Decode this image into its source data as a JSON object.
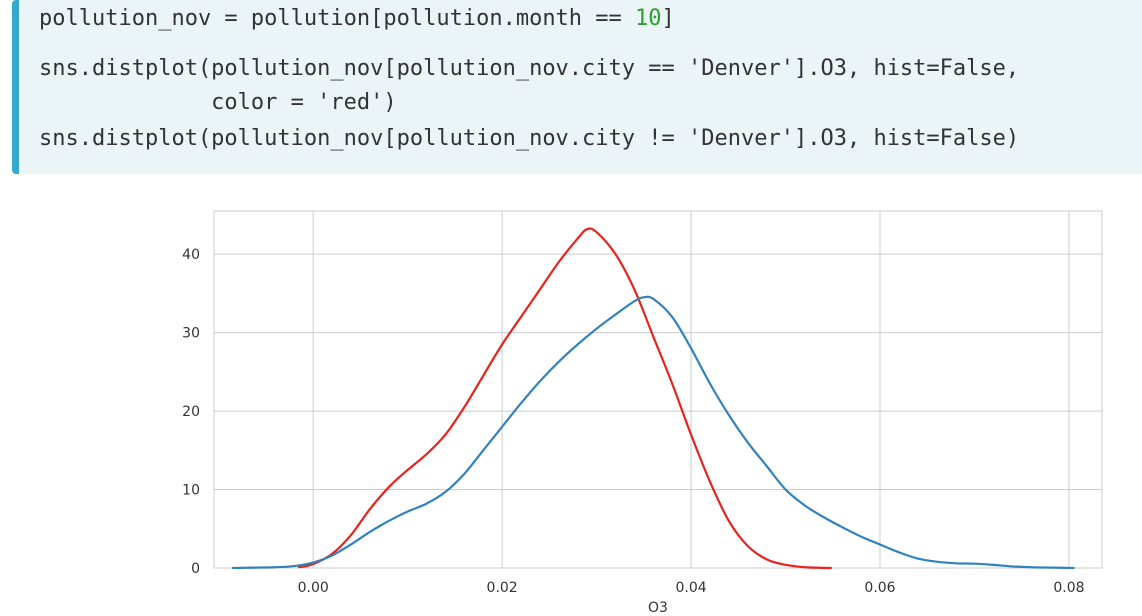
{
  "code": {
    "lines": [
      {
        "parts": [
          {
            "text": "pollution_nov = pollution[pollution.month == ",
            "type": "plain"
          },
          {
            "text": "10",
            "type": "num"
          },
          {
            "text": "]",
            "type": "plain"
          }
        ]
      },
      {
        "parts": [
          {
            "text": "sns.distplot(pollution_nov[pollution_nov.city == 'Denver'].O3, hist=False,",
            "type": "plain"
          }
        ]
      },
      {
        "parts": [
          {
            "text": "             color = 'red')",
            "type": "plain"
          }
        ]
      },
      {
        "parts": [
          {
            "text": "sns.distplot(pollution_nov[pollution_nov.city != 'Denver'].O3, hist=False)",
            "type": "plain"
          }
        ]
      }
    ]
  },
  "chart_data": {
    "type": "line",
    "title": "",
    "xlabel": "O3",
    "ylabel": "",
    "xlim": [
      -0.0105,
      0.0835
    ],
    "ylim": [
      0,
      45.5
    ],
    "xticks": [
      0.0,
      0.02,
      0.04,
      0.06,
      0.08
    ],
    "xtick_labels": [
      "0.00",
      "0.02",
      "0.04",
      "0.06",
      "0.08"
    ],
    "yticks": [
      0,
      10,
      20,
      30,
      40
    ],
    "ytick_labels": [
      "0",
      "10",
      "20",
      "30",
      "40"
    ],
    "grid": true,
    "legend": false,
    "series": [
      {
        "color": "#e8221d",
        "x": [
          -0.0015,
          0.0,
          0.002,
          0.004,
          0.006,
          0.008,
          0.01,
          0.012,
          0.014,
          0.016,
          0.018,
          0.02,
          0.022,
          0.024,
          0.026,
          0.028,
          0.029,
          0.03,
          0.032,
          0.034,
          0.036,
          0.038,
          0.04,
          0.042,
          0.044,
          0.046,
          0.048,
          0.05,
          0.052,
          0.054,
          0.0548
        ],
        "y": [
          0.1,
          0.5,
          1.8,
          4.2,
          7.5,
          10.3,
          12.5,
          14.5,
          17.0,
          20.5,
          24.5,
          28.5,
          32.0,
          35.5,
          39.0,
          42.0,
          43.2,
          42.8,
          40.0,
          35.5,
          29.5,
          23.5,
          17.0,
          11.0,
          6.0,
          2.8,
          1.1,
          0.4,
          0.1,
          0.02,
          0.0
        ]
      },
      {
        "color": "#3182bd",
        "x": [
          -0.0085,
          -0.006,
          -0.004,
          -0.002,
          0.0,
          0.002,
          0.004,
          0.006,
          0.008,
          0.01,
          0.012,
          0.014,
          0.016,
          0.018,
          0.02,
          0.022,
          0.024,
          0.026,
          0.028,
          0.03,
          0.032,
          0.034,
          0.035,
          0.036,
          0.038,
          0.04,
          0.042,
          0.044,
          0.046,
          0.048,
          0.05,
          0.052,
          0.054,
          0.056,
          0.058,
          0.06,
          0.062,
          0.064,
          0.066,
          0.068,
          0.07,
          0.072,
          0.074,
          0.076,
          0.078,
          0.0805
        ],
        "y": [
          0.0,
          0.05,
          0.1,
          0.25,
          0.7,
          1.6,
          3.0,
          4.6,
          6.0,
          7.2,
          8.2,
          9.7,
          12.0,
          15.0,
          18.0,
          21.0,
          23.8,
          26.3,
          28.5,
          30.5,
          32.3,
          34.0,
          34.5,
          34.3,
          32.0,
          28.0,
          23.5,
          19.5,
          16.0,
          13.0,
          10.0,
          8.0,
          6.5,
          5.2,
          4.0,
          3.0,
          2.0,
          1.2,
          0.8,
          0.6,
          0.55,
          0.4,
          0.2,
          0.1,
          0.05,
          0.0
        ]
      }
    ]
  }
}
